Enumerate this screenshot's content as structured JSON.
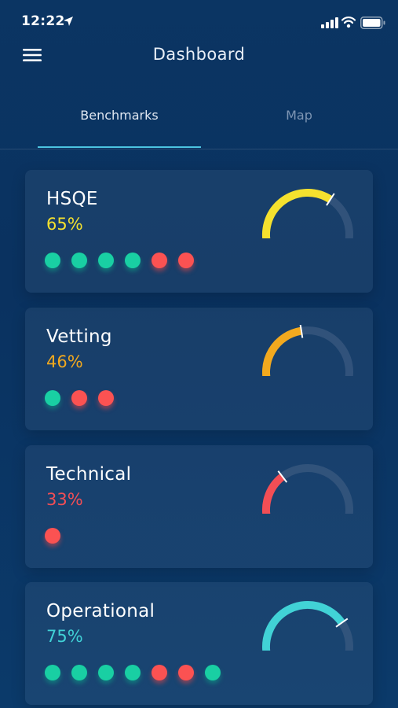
{
  "status_bar": {
    "time": "12:22",
    "icons": [
      "location-arrow-icon",
      "cellular-signal-icon",
      "wifi-icon",
      "battery-icon"
    ]
  },
  "header": {
    "title": "Dashboard",
    "menu_icon": "hamburger-menu-icon"
  },
  "tabs": [
    {
      "label": "Benchmarks",
      "active": true
    },
    {
      "label": "Map",
      "active": false
    }
  ],
  "colors": {
    "background": "#0b3563",
    "tab_indicator": "#4cc4e0",
    "status_green": "#19cfa3",
    "status_red": "#fb5252",
    "gauge_track": "#3a5a80"
  },
  "benchmarks": [
    {
      "title": "HSQE",
      "percent": "65%",
      "value": 65,
      "color": "#f5e12e",
      "dots": [
        "green",
        "green",
        "green",
        "green",
        "red",
        "red"
      ]
    },
    {
      "title": "Vetting",
      "percent": "46%",
      "value": 46,
      "color": "#f2a91e",
      "dots": [
        "green",
        "red",
        "red"
      ]
    },
    {
      "title": "Technical",
      "percent": "33%",
      "value": 33,
      "color": "#f24e55",
      "dots": [
        "red"
      ]
    },
    {
      "title": "Operational",
      "percent": "75%",
      "value": 75,
      "color": "#41d2d6",
      "dots": [
        "green",
        "green",
        "green",
        "green",
        "red",
        "red",
        "green"
      ]
    }
  ]
}
